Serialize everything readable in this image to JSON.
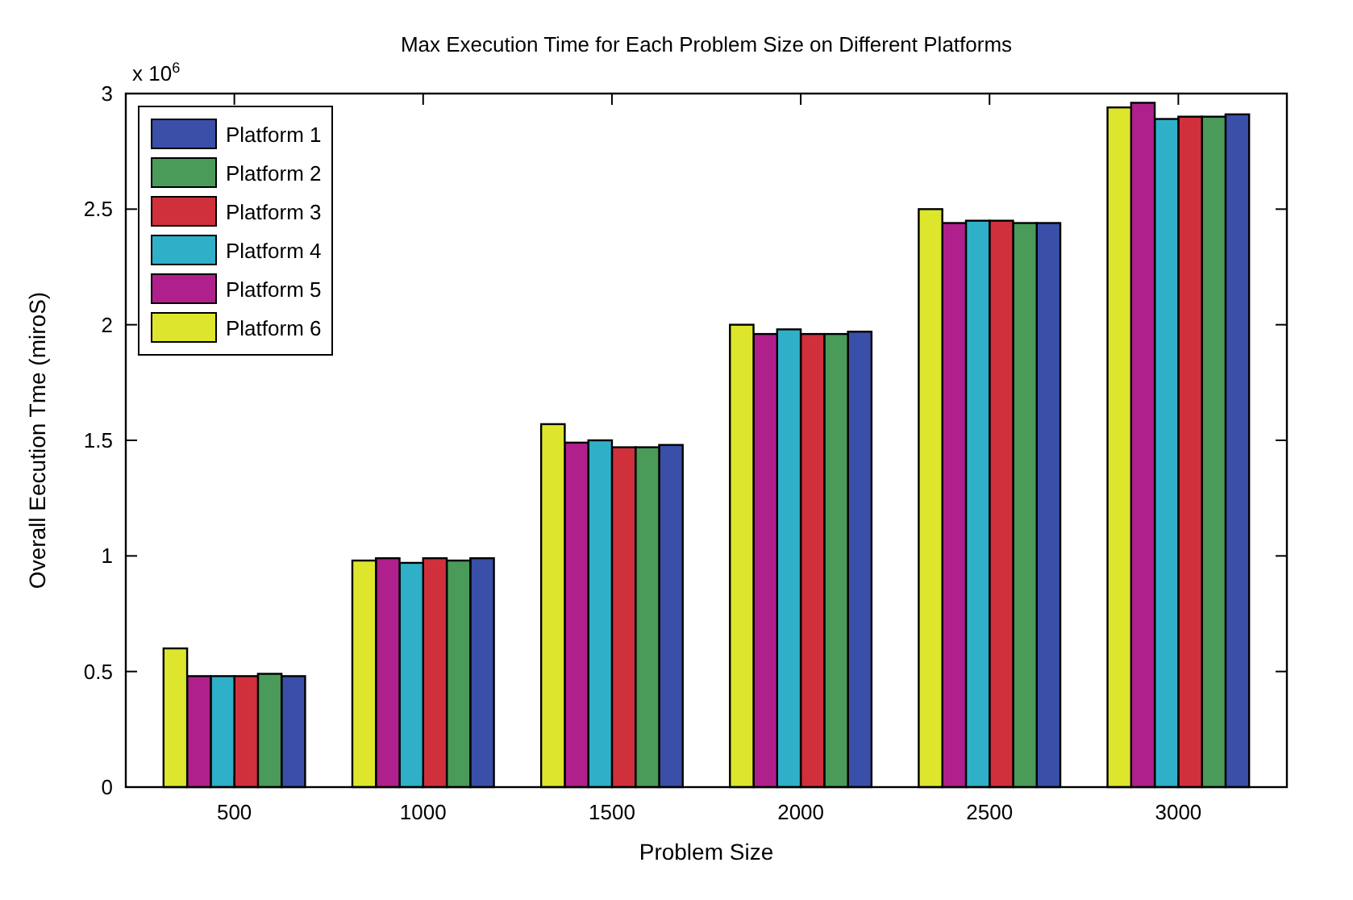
{
  "chart_data": {
    "type": "bar",
    "title": "Max Execution Time for Each Problem Size on Different Platforms",
    "xlabel": "Problem Size",
    "ylabel": "Overall Eecution Tme (miroS)",
    "annotations": [
      "x 10$^{6}$"
    ],
    "categories": [
      "500",
      "1000",
      "1500",
      "2000",
      "2500",
      "3000"
    ],
    "series": [
      {
        "name": "Platform 1",
        "color": "#3a4fa8",
        "values": [
          0.48,
          0.99,
          1.48,
          1.97,
          2.44,
          2.91
        ]
      },
      {
        "name": "Platform 2",
        "color": "#4a9a5a",
        "values": [
          0.49,
          0.98,
          1.47,
          1.96,
          2.44,
          2.9
        ]
      },
      {
        "name": "Platform 3",
        "color": "#d0303c",
        "values": [
          0.48,
          0.99,
          1.47,
          1.96,
          2.45,
          2.9
        ]
      },
      {
        "name": "Platform 4",
        "color": "#2fb0c8",
        "values": [
          0.48,
          0.97,
          1.5,
          1.98,
          2.45,
          2.89
        ]
      },
      {
        "name": "Platform 5",
        "color": "#b0208c",
        "values": [
          0.48,
          0.99,
          1.49,
          1.96,
          2.44,
          2.96
        ]
      },
      {
        "name": "Platform 6",
        "color": "#dde62c",
        "values": [
          0.6,
          0.98,
          1.57,
          2.0,
          2.5,
          2.94
        ]
      }
    ],
    "ylim": [
      0,
      3
    ],
    "yticks": [
      0,
      0.5,
      1,
      1.5,
      2,
      2.5,
      3
    ],
    "grid": false,
    "legend": "top left"
  }
}
